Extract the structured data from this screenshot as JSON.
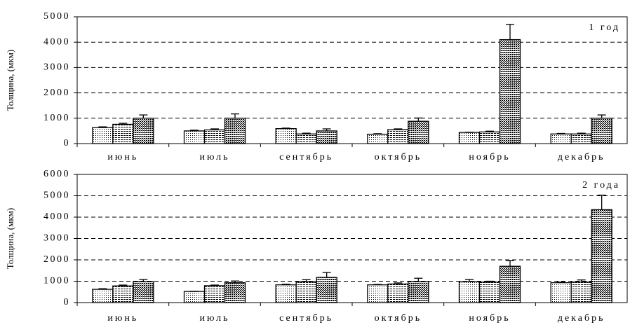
{
  "chart_data": [
    {
      "type": "bar",
      "y_label": "Толщина, (мкм)",
      "annotation": "1 год",
      "categories": [
        "июнь",
        "июль",
        "сентябрь",
        "октябрь",
        "ноябрь",
        "декабрь"
      ],
      "series": [
        {
          "pattern": "dots",
          "color": "#000000",
          "values": [
            630,
            500,
            590,
            370,
            440,
            380
          ],
          "errors": [
            30,
            30,
            20,
            20,
            10,
            20
          ]
        },
        {
          "pattern": "hlines",
          "color": "#000000",
          "values": [
            760,
            540,
            380,
            550,
            460,
            380
          ],
          "errors": [
            40,
            40,
            30,
            30,
            30,
            30
          ]
        },
        {
          "pattern": "crosshatch",
          "color": "#000000",
          "values": [
            1000,
            1000,
            500,
            880,
            4100,
            1000
          ],
          "errors": [
            130,
            170,
            80,
            130,
            600,
            130
          ]
        }
      ],
      "ylim": [
        0,
        5000
      ],
      "yticks": [
        0,
        1000,
        2000,
        3000,
        4000,
        5000
      ],
      "grid": true
    },
    {
      "type": "bar",
      "y_label": "Толщина, (мкм)",
      "annotation": "2 года",
      "categories": [
        "июнь",
        "июль",
        "сентябрь",
        "октябрь",
        "ноябрь",
        "декабрь"
      ],
      "series": [
        {
          "pattern": "dots",
          "color": "#000000",
          "values": [
            620,
            520,
            830,
            830,
            980,
            930
          ],
          "errors": [
            30,
            10,
            30,
            20,
            100,
            30
          ]
        },
        {
          "pattern": "hlines",
          "color": "#000000",
          "values": [
            780,
            790,
            980,
            870,
            960,
            960
          ],
          "errors": [
            40,
            30,
            90,
            50,
            40,
            100
          ]
        },
        {
          "pattern": "crosshatch",
          "color": "#000000",
          "values": [
            980,
            930,
            1180,
            980,
            1700,
            4350
          ],
          "errors": [
            100,
            80,
            230,
            160,
            270,
            680
          ]
        }
      ],
      "ylim": [
        0,
        6000
      ],
      "yticks": [
        0,
        1000,
        2000,
        3000,
        4000,
        5000,
        6000
      ],
      "grid": true
    }
  ]
}
